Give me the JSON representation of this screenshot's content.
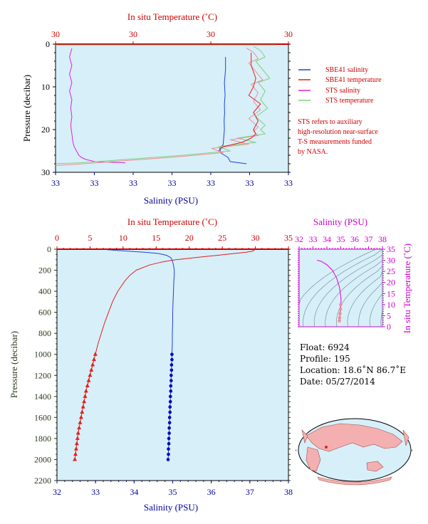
{
  "colors": {
    "panel_bg": "#d7eff8",
    "salinity_axis": "#0000a0",
    "temperature_axis": "#cc0000",
    "pressure_axis": "#2a3a1a",
    "sbe_salinity": "#2040e0",
    "sbe_temperature": "#e02020",
    "sts_salinity": "#e020e0",
    "sts_temperature": "#80d080",
    "sts_temperature_alt": "#f09090",
    "inset_axis": "#cc00cc",
    "land": "#f4b0b0",
    "ocean": "#d7eff8",
    "profile_marker": "#e02020"
  },
  "chart_data": [
    {
      "id": "near-surface",
      "type": "line",
      "top_axis_title": "In situ Temperature (˚C)",
      "top_ticks": [
        "30",
        "30",
        "30",
        "30"
      ],
      "bottom_axis_title": "Salinity (PSU)",
      "bottom_ticks": [
        "33",
        "33",
        "33",
        "33",
        "33",
        "33",
        "33"
      ],
      "left_axis_title": "Pressure (decibar)",
      "left_ticks": [
        "0",
        "10",
        "20",
        "30"
      ],
      "ylim": [
        0,
        30
      ],
      "legend": [
        {
          "label": "SBE41 salinity",
          "color": "#2040e0"
        },
        {
          "label": "SBE41 temperature",
          "color": "#e02020"
        },
        {
          "label": "STS salinity",
          "color": "#e020e0"
        },
        {
          "label": "STS temperature",
          "color": "#80d080"
        }
      ],
      "note": [
        "STS refers to auxiliary",
        "high-resolution near-surface",
        "T-S measurements funded",
        "by NASA."
      ],
      "series": [
        {
          "key": "sts_salinity",
          "x_frac": [
            0.07,
            0.06,
            0.07,
            0.06,
            0.07,
            0.06,
            0.07,
            0.065,
            0.07,
            0.065,
            0.07,
            0.075,
            0.08,
            0.09,
            0.1,
            0.11,
            0.13,
            0.17,
            0.3
          ],
          "pressure": [
            1,
            3,
            5,
            7,
            9,
            11,
            13,
            15,
            17,
            19,
            21,
            23,
            24,
            25,
            26,
            26.5,
            27,
            27.5,
            27.8
          ]
        },
        {
          "key": "sbe_salinity",
          "x_frac": [
            0.73,
            0.73,
            0.725,
            0.728,
            0.725,
            0.726,
            0.724,
            0.725,
            0.722,
            0.72,
            0.705,
            0.71,
            0.74,
            0.75,
            0.82
          ],
          "pressure": [
            3,
            6,
            9,
            12,
            14,
            16,
            18,
            20,
            22,
            23.5,
            24.5,
            25.5,
            26.5,
            27.5,
            28
          ]
        },
        {
          "key": "sts_temperature",
          "x_frac": [
            0.85,
            0.88,
            0.9,
            0.86,
            0.89,
            0.92,
            0.87,
            0.9,
            0.88,
            0.91,
            0.86,
            0.9,
            0.88,
            0.9,
            0.78,
            0.86,
            0.7,
            0.75,
            0.55,
            0.3,
            0.1,
            0.0
          ],
          "pressure": [
            0.5,
            1.5,
            3,
            4,
            6,
            8,
            9,
            11,
            13,
            15,
            17,
            19,
            20,
            21,
            22,
            23,
            24,
            25,
            26,
            27,
            27.8,
            28
          ]
        },
        {
          "key": "sbe_temperature",
          "x_frac": [
            0.84,
            0.84,
            0.86,
            0.85,
            0.83,
            0.88,
            0.85,
            0.87,
            0.85,
            0.86,
            0.84,
            0.8,
            0.72,
            0.7
          ],
          "pressure": [
            2,
            5,
            8,
            10,
            12,
            14,
            16,
            18,
            20,
            21,
            22,
            23,
            24,
            25
          ]
        }
      ]
    },
    {
      "id": "full-profile",
      "type": "line",
      "top_axis_title": "In situ Temperature (˚C)",
      "top_ticks": [
        "0",
        "5",
        "10",
        "15",
        "20",
        "25",
        "30",
        "35"
      ],
      "xlim_temperature": [
        0,
        35
      ],
      "bottom_axis_title": "Salinity (PSU)",
      "bottom_ticks": [
        "32",
        "33",
        "34",
        "35",
        "36",
        "37",
        "38"
      ],
      "xlim_salinity": [
        32,
        38
      ],
      "left_axis_title": "Pressure (decibar)",
      "left_ticks": [
        "0",
        "200",
        "400",
        "600",
        "800",
        "1000",
        "1200",
        "1400",
        "1600",
        "1800",
        "2000",
        "2200"
      ],
      "ylim": [
        0,
        2200
      ],
      "temperature": {
        "pressure": [
          0,
          5,
          10,
          20,
          30,
          40,
          50,
          60,
          70,
          80,
          90,
          100,
          120,
          150,
          200,
          250,
          300,
          400,
          500,
          600,
          700,
          800,
          900,
          1000
        ],
        "values": [
          30.0,
          29.9,
          29.8,
          29.5,
          28.5,
          27.0,
          25.5,
          24.0,
          22.5,
          21.0,
          19.5,
          18.0,
          16.0,
          14.0,
          12.0,
          11.0,
          10.3,
          9.2,
          8.4,
          7.8,
          7.2,
          6.7,
          6.2,
          5.8
        ]
      },
      "salinity": {
        "pressure": [
          0,
          5,
          10,
          20,
          30,
          40,
          50,
          60,
          70,
          80,
          100,
          120,
          150,
          200,
          250,
          300,
          400,
          500,
          600,
          700,
          800,
          900,
          1000
        ],
        "values": [
          33.3,
          33.3,
          33.5,
          33.9,
          34.3,
          34.6,
          34.75,
          34.85,
          34.9,
          34.95,
          34.98,
          35.0,
          35.02,
          35.04,
          35.04,
          35.03,
          35.02,
          35.01,
          35.0,
          35.0,
          34.99,
          34.99,
          34.98
        ]
      },
      "deep_temperature": {
        "pressure": [
          1000,
          1050,
          1100,
          1150,
          1200,
          1250,
          1300,
          1350,
          1400,
          1450,
          1500,
          1550,
          1600,
          1650,
          1700,
          1750,
          1800,
          1850,
          1900,
          1950,
          2000
        ],
        "values": [
          5.8,
          5.6,
          5.4,
          5.2,
          5.0,
          4.8,
          4.6,
          4.4,
          4.25,
          4.1,
          3.95,
          3.8,
          3.65,
          3.5,
          3.35,
          3.2,
          3.1,
          3.0,
          2.9,
          2.8,
          2.7
        ]
      },
      "deep_salinity": {
        "pressure": [
          1000,
          1050,
          1100,
          1150,
          1200,
          1250,
          1300,
          1350,
          1400,
          1450,
          1500,
          1550,
          1600,
          1650,
          1700,
          1750,
          1800,
          1850,
          1900,
          1950,
          2000
        ],
        "values": [
          34.98,
          34.98,
          34.97,
          34.97,
          34.96,
          34.96,
          34.95,
          34.95,
          34.94,
          34.94,
          34.93,
          34.93,
          34.92,
          34.92,
          34.91,
          34.91,
          34.9,
          34.9,
          34.89,
          34.89,
          34.88
        ]
      }
    },
    {
      "id": "ts-diagram",
      "type": "line",
      "top_axis_title": "Salinity (PSU)",
      "top_ticks": [
        "32",
        "33",
        "34",
        "35",
        "36",
        "37",
        "38"
      ],
      "xlim": [
        32,
        38
      ],
      "right_axis_title": "In situ Temperature (˚C)",
      "right_ticks": [
        "0",
        "5",
        "10",
        "15",
        "20",
        "25",
        "30",
        "35"
      ],
      "ylim": [
        0,
        35
      ],
      "curve": {
        "salinity": [
          33.3,
          33.6,
          34.0,
          34.4,
          34.7,
          34.9,
          35.0,
          35.02,
          35.0,
          34.98,
          34.95,
          34.92,
          34.9
        ],
        "temperature": [
          30.0,
          29.5,
          28.0,
          25.5,
          22.0,
          18.0,
          14.0,
          12.0,
          10.0,
          8.0,
          6.0,
          4.0,
          2.7
        ]
      }
    }
  ],
  "float_info": {
    "float": "Float:  6924",
    "profile": "Profile:  195",
    "location": "Location:  18.6˚N  86.7˚E",
    "date": "Date:  05/27/2014"
  }
}
